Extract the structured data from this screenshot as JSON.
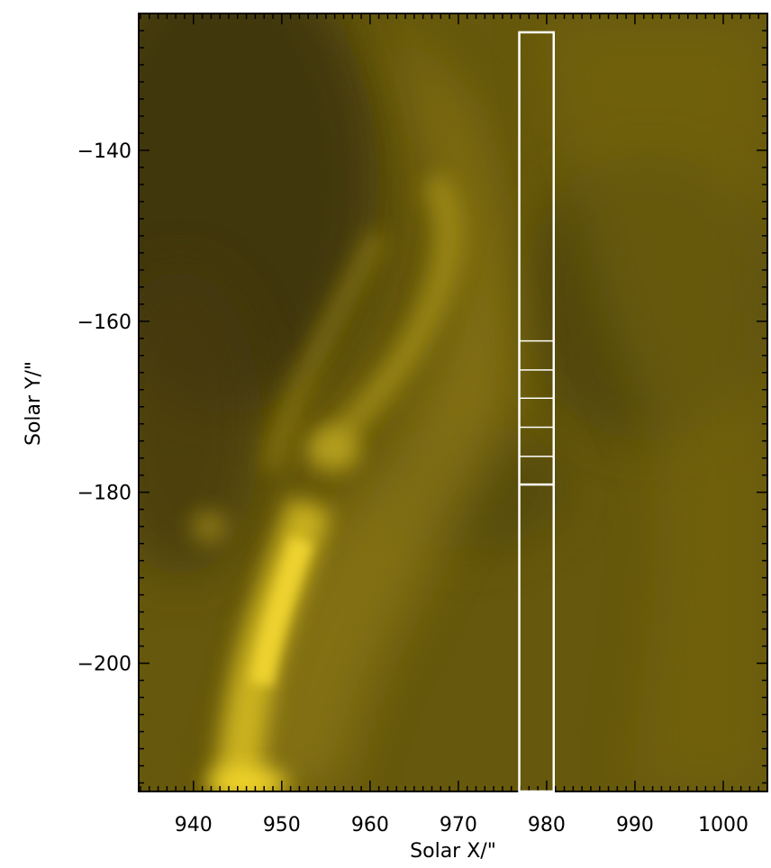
{
  "chart_data": {
    "type": "heatmap",
    "title": "",
    "xlabel": "Solar X/\"",
    "ylabel": "Solar Y/\"",
    "xlim": [
      933.8,
      1005.0
    ],
    "ylim": [
      -215.0,
      -124.0
    ],
    "x_ticks": [
      940,
      950,
      960,
      970,
      980,
      990,
      1000
    ],
    "y_ticks": [
      -140,
      -160,
      -180,
      -200
    ],
    "x_tick_labels": [
      "940",
      "950",
      "960",
      "970",
      "980",
      "990",
      "1000"
    ],
    "y_tick_labels": [
      "−140",
      "−160",
      "−180",
      "−200"
    ],
    "colormap": "yellow",
    "slit": {
      "x_range": [
        976.9,
        980.8
      ],
      "y_range": [
        -215.0,
        -126.2
      ]
    },
    "subdivision_y": [
      -162.3,
      -165.7,
      -169.0,
      -172.4,
      -175.8,
      -179.1
    ],
    "grid": false
  },
  "colors": {
    "background": "#5e5108",
    "bright": "#f2d630",
    "overlay": "#ffffff",
    "axis": "#000000"
  }
}
